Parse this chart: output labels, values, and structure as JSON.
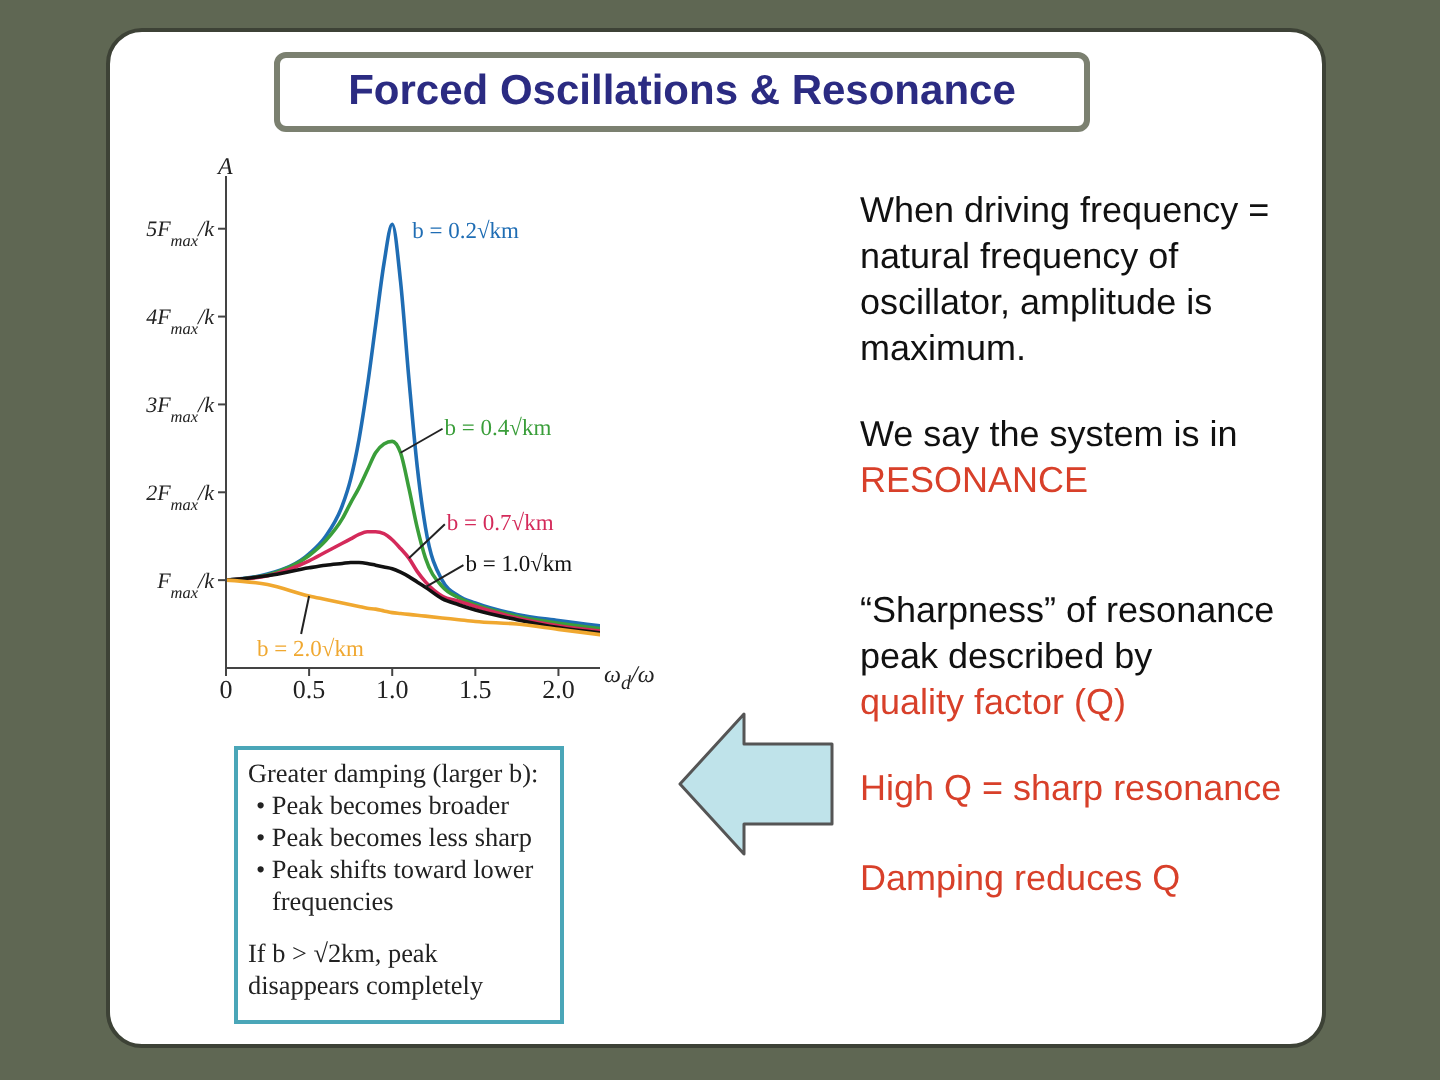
{
  "chart_data": {
    "type": "line",
    "title": "Forced Oscillations & Resonance",
    "xlabel": "ω$_{d}$/ω",
    "ylabel": "A",
    "x": [
      0,
      0.25,
      0.5,
      0.6,
      0.7,
      0.75,
      0.8,
      0.85,
      0.9,
      0.95,
      1.0,
      1.05,
      1.1,
      1.15,
      1.2,
      1.3,
      1.4,
      1.5,
      1.75,
      2.0,
      2.25
    ],
    "series": [
      {
        "name": "b = 0.2√km",
        "color": "#1f6db4",
        "values": [
          1.0,
          1.07,
          1.3,
          1.5,
          1.85,
          2.15,
          2.6,
          3.2,
          3.9,
          4.6,
          5.05,
          4.4,
          3.3,
          2.3,
          1.6,
          1.0,
          0.82,
          0.74,
          0.61,
          0.54,
          0.48
        ]
      },
      {
        "name": "b = 0.4√km",
        "color": "#3a9e3a",
        "values": [
          1.0,
          1.06,
          1.28,
          1.45,
          1.7,
          1.88,
          2.05,
          2.25,
          2.45,
          2.55,
          2.58,
          2.45,
          2.05,
          1.6,
          1.25,
          0.93,
          0.8,
          0.72,
          0.59,
          0.51,
          0.45
        ]
      },
      {
        "name": "b = 0.7√km",
        "color": "#d42a5a",
        "values": [
          1.0,
          1.05,
          1.22,
          1.32,
          1.42,
          1.47,
          1.52,
          1.55,
          1.55,
          1.53,
          1.46,
          1.36,
          1.25,
          1.1,
          0.98,
          0.82,
          0.76,
          0.7,
          0.57,
          0.48,
          0.42
        ]
      },
      {
        "name": "b = 1.0√km",
        "color": "#111111",
        "values": [
          1.0,
          1.05,
          1.14,
          1.17,
          1.19,
          1.2,
          1.2,
          1.19,
          1.17,
          1.15,
          1.13,
          1.09,
          1.04,
          0.98,
          0.92,
          0.79,
          0.72,
          0.66,
          0.55,
          0.46,
          0.4
        ]
      },
      {
        "name": "b = 2.0√km",
        "color": "#f0a830",
        "values": [
          1.0,
          0.95,
          0.82,
          0.78,
          0.74,
          0.72,
          0.7,
          0.68,
          0.67,
          0.65,
          0.63,
          0.62,
          0.61,
          0.6,
          0.59,
          0.57,
          0.55,
          0.53,
          0.5,
          0.44,
          0.38
        ]
      }
    ],
    "xlim": [
      0,
      2.25
    ],
    "xticks": [
      0,
      0.5,
      {
        "value": 1,
        "label": "1.0"
      },
      1.5,
      {
        "value": 2,
        "label": "2.0"
      }
    ],
    "ylim": [
      0,
      5.6
    ],
    "yticks": [
      {
        "value": 1,
        "label": "F$_{max}$/k"
      },
      {
        "value": 2,
        "label": "2F$_{max}$/k"
      },
      {
        "value": 3,
        "label": "3F$_{max}$/k"
      },
      {
        "value": 4,
        "label": "4F$_{max}$/k"
      },
      {
        "value": 5,
        "label": "5F$_{max}$/k"
      }
    ],
    "legend": false,
    "grid": false,
    "marker": "none",
    "line_style": "solid",
    "annotations": [
      "When driving frequency = natural frequency of oscillator, amplitude is maximum.",
      "We say the system is in",
      "RESONANCE",
      "“Sharpness” of resonance peak described by",
      "quality factor (Q)",
      "High Q = sharp resonance",
      "Damping reduces Q",
      "Greater damping (larger b):",
      "• Peak becomes broader",
      "• Peak becomes less sharp",
      "• Peak shifts toward lower frequencies",
      "If b > √2km, peak disappears completely"
    ]
  }
}
